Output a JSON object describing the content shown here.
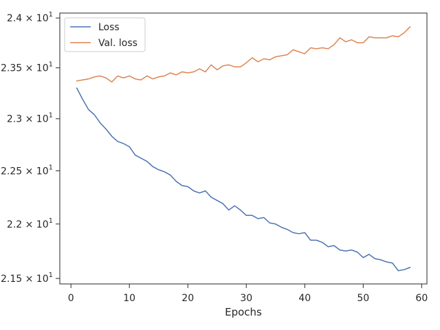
{
  "chart_data": {
    "type": "line",
    "title": "",
    "xlabel": "Epochs",
    "ylabel": "",
    "y_scale": "log",
    "xlim": [
      -1.9,
      60.9
    ],
    "ylim": [
      21.45,
      24.05
    ],
    "x_ticks": [
      0,
      10,
      20,
      30,
      40,
      50,
      60
    ],
    "x_tick_labels": [
      "0",
      "10",
      "20",
      "30",
      "40",
      "50",
      "60"
    ],
    "y_ticks": [
      21.5,
      22.0,
      22.5,
      23.0,
      23.5,
      24.0
    ],
    "y_tick_labels": [
      {
        "base": "2.15 × 10",
        "exp": "1"
      },
      {
        "base": "2.2 × 10",
        "exp": "1"
      },
      {
        "base": "2.25 × 10",
        "exp": "1"
      },
      {
        "base": "2.3 × 10",
        "exp": "1"
      },
      {
        "base": "2.35 × 10",
        "exp": "1"
      },
      {
        "base": "2.4 × 10",
        "exp": "1"
      }
    ],
    "grid": false,
    "legend_position": "upper-left",
    "x": [
      1,
      2,
      3,
      4,
      5,
      6,
      7,
      8,
      9,
      10,
      11,
      12,
      13,
      14,
      15,
      16,
      17,
      18,
      19,
      20,
      21,
      22,
      23,
      24,
      25,
      26,
      27,
      28,
      29,
      30,
      31,
      32,
      33,
      34,
      35,
      36,
      37,
      38,
      39,
      40,
      41,
      42,
      43,
      44,
      45,
      46,
      47,
      48,
      49,
      50,
      51,
      52,
      53,
      54,
      55,
      56,
      57,
      58
    ],
    "series": [
      {
        "name": "Loss",
        "color": "#4c72b0",
        "values": [
          23.3,
          23.19,
          23.09,
          23.04,
          22.96,
          22.9,
          22.83,
          22.78,
          22.76,
          22.73,
          22.65,
          22.62,
          22.59,
          22.54,
          22.51,
          22.49,
          22.46,
          22.4,
          22.36,
          22.35,
          22.31,
          22.29,
          22.31,
          22.25,
          22.22,
          22.19,
          22.13,
          22.17,
          22.13,
          22.08,
          22.08,
          22.05,
          22.06,
          22.01,
          22.0,
          21.97,
          21.95,
          21.92,
          21.91,
          21.92,
          21.85,
          21.85,
          21.83,
          21.79,
          21.8,
          21.76,
          21.75,
          21.76,
          21.74,
          21.69,
          21.72,
          21.68,
          21.67,
          21.65,
          21.64,
          21.57,
          21.58,
          21.6
        ]
      },
      {
        "name": "Val. loss",
        "color": "#dd8452",
        "values": [
          23.37,
          23.38,
          23.39,
          23.41,
          23.42,
          23.4,
          23.36,
          23.42,
          23.4,
          23.42,
          23.39,
          23.38,
          23.42,
          23.39,
          23.41,
          23.42,
          23.45,
          23.43,
          23.46,
          23.45,
          23.46,
          23.49,
          23.46,
          23.53,
          23.48,
          23.52,
          23.53,
          23.51,
          23.51,
          23.55,
          23.6,
          23.56,
          23.59,
          23.58,
          23.61,
          23.62,
          23.63,
          23.68,
          23.66,
          23.64,
          23.7,
          23.69,
          23.7,
          23.69,
          23.73,
          23.8,
          23.76,
          23.78,
          23.75,
          23.75,
          23.81,
          23.8,
          23.8,
          23.8,
          23.82,
          23.81,
          23.85,
          23.91
        ]
      }
    ]
  }
}
